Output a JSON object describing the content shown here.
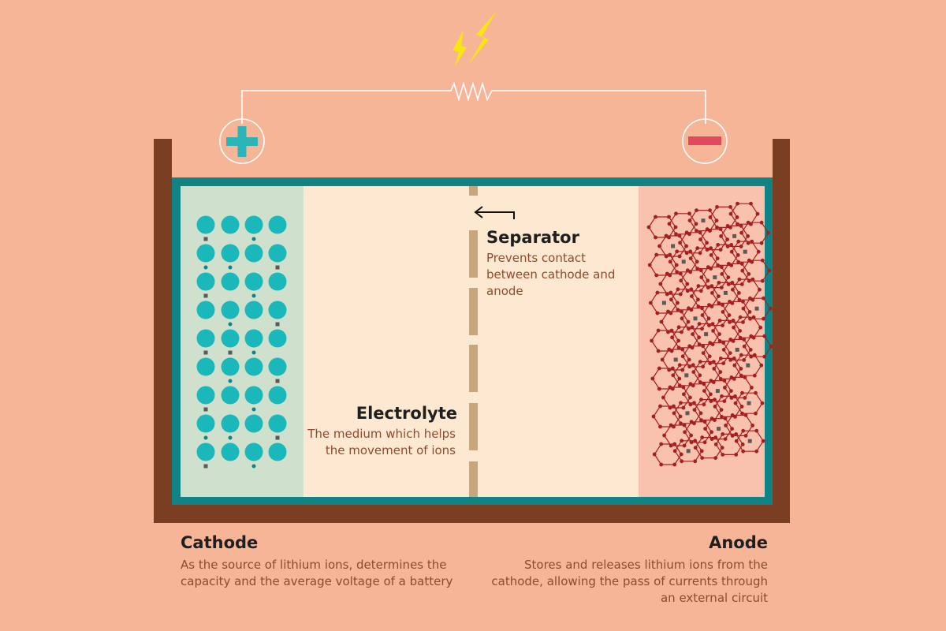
{
  "colors": {
    "background": "#f7b598",
    "casing": "#7a3f22",
    "frame": "#128385",
    "cathode_bg": "#cfe0cc",
    "electrolyte_bg": "#fde9d1",
    "anode_bg": "#f8c2ae",
    "cathode_particle": "#1ab8bb",
    "separator": "#c9a57c",
    "anode_lattice": "#a41f1f",
    "lithium_ion": "#5a5a5a",
    "bolt": "#f7e70a",
    "plus_sign": "#2bb5b8",
    "minus_sign": "#e1495f"
  },
  "icons": {
    "bolt": "lightning-bolt-icon",
    "positive": "plus-icon",
    "negative": "minus-icon",
    "resistor": "resistor-icon",
    "arrow": "arrow-left-icon"
  },
  "separator": {
    "label": "Separator",
    "description": "Prevents contact between cathode and anode"
  },
  "electrolyte": {
    "label": "Electrolyte",
    "description": "The medium which helps the movement of ions"
  },
  "cathode": {
    "label": "Cathode",
    "description": "As the source of lithium ions, determines the capacity and the average voltage of a battery"
  },
  "anode": {
    "label": "Anode",
    "description": "Stores and releases lithium ions from the cathode, allowing the pass of currents through an external circuit"
  }
}
